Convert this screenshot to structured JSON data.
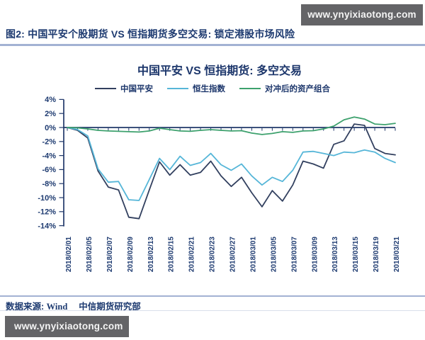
{
  "watermark": {
    "text": "www.ynyixiaotong.com"
  },
  "caption": "图2: 中国平安个股期货 VS 恒指期货多空交易: 锁定港股市场风险",
  "source": {
    "prefix": "数据来源: ",
    "vendor": "Wind",
    "org": "中信期货研究部"
  },
  "colors": {
    "text_navy": "#1d3a70",
    "axis_navy": "#21386a",
    "divider": "#a3b2d3",
    "watermark_bg": "#646467",
    "watermark_fg": "#f5f5f5"
  },
  "chart_data": {
    "type": "line",
    "title": "中国平安 VS 恒指期货: 多空交易",
    "xlabel": "",
    "ylabel": "",
    "ylim": [
      -14,
      4
    ],
    "grid": false,
    "legend_position": "top",
    "tick_label_orientation": "vertical",
    "y_ticks": [
      "4%",
      "2%",
      "0%",
      "-2%",
      "-4%",
      "-6%",
      "-8%",
      "-10%",
      "-12%",
      "-14%"
    ],
    "y_tick_values": [
      4,
      2,
      0,
      -2,
      -4,
      -6,
      -8,
      -10,
      -12,
      -14
    ],
    "x_labels": [
      "2018/02/01",
      "2018/02/05",
      "2018/02/07",
      "2018/02/09",
      "2018/02/13",
      "2018/02/15",
      "2018/02/21",
      "2018/02/23",
      "2018/02/27",
      "2018/03/01",
      "2018/03/05",
      "2018/03/07",
      "2018/03/09",
      "2018/03/13",
      "2018/03/15",
      "2018/03/19",
      "2018/03/21"
    ],
    "x_all": [
      "2018/02/01",
      "2018/02/02",
      "2018/02/05",
      "2018/02/06",
      "2018/02/07",
      "2018/02/08",
      "2018/02/09",
      "2018/02/12",
      "2018/02/13",
      "2018/02/14",
      "2018/02/15",
      "2018/02/16",
      "2018/02/21",
      "2018/02/22",
      "2018/02/23",
      "2018/02/26",
      "2018/02/27",
      "2018/02/28",
      "2018/03/01",
      "2018/03/02",
      "2018/03/05",
      "2018/03/06",
      "2018/03/07",
      "2018/03/08",
      "2018/03/09",
      "2018/03/12",
      "2018/03/13",
      "2018/03/14",
      "2018/03/15",
      "2018/03/16",
      "2018/03/19",
      "2018/03/20",
      "2018/03/21"
    ],
    "unit": "percent_cumulative_return",
    "series": [
      {
        "name": "中国平安",
        "color": "#32405f",
        "values": [
          0,
          -0.4,
          -1.5,
          -6.2,
          -8.5,
          -8.9,
          -12.8,
          -13.0,
          -8.9,
          -4.9,
          -6.8,
          -5.3,
          -6.8,
          -6.4,
          -4.8,
          -6.9,
          -8.4,
          -7.1,
          -9.3,
          -11.3,
          -9.0,
          -10.5,
          -8.2,
          -4.8,
          -5.2,
          -5.8,
          -2.4,
          -1.9,
          0.5,
          0.3,
          -3.0,
          -3.7,
          -3.9
        ]
      },
      {
        "name": "恒生指数",
        "color": "#56b6d8",
        "values": [
          0,
          -0.3,
          -1.2,
          -5.9,
          -7.8,
          -7.7,
          -10.3,
          -10.4,
          -7.4,
          -4.4,
          -6.0,
          -4.1,
          -5.4,
          -5.0,
          -3.7,
          -5.3,
          -6.1,
          -5.2,
          -6.9,
          -8.2,
          -7.1,
          -7.7,
          -6.1,
          -3.5,
          -3.4,
          -3.7,
          -4.0,
          -3.5,
          -3.6,
          -3.2,
          -3.5,
          -4.4,
          -5.0
        ]
      },
      {
        "name": "对冲后的资产组合",
        "color": "#3da16d",
        "values": [
          0,
          -0.05,
          -0.2,
          -0.4,
          -0.5,
          -0.55,
          -0.6,
          -0.65,
          -0.5,
          -0.1,
          -0.3,
          -0.5,
          -0.55,
          -0.4,
          -0.3,
          -0.4,
          -0.5,
          -0.45,
          -0.8,
          -1.0,
          -0.85,
          -0.6,
          -0.7,
          -0.5,
          -0.45,
          -0.2,
          0.2,
          1.1,
          1.5,
          1.2,
          0.5,
          0.4,
          0.6
        ]
      }
    ]
  }
}
